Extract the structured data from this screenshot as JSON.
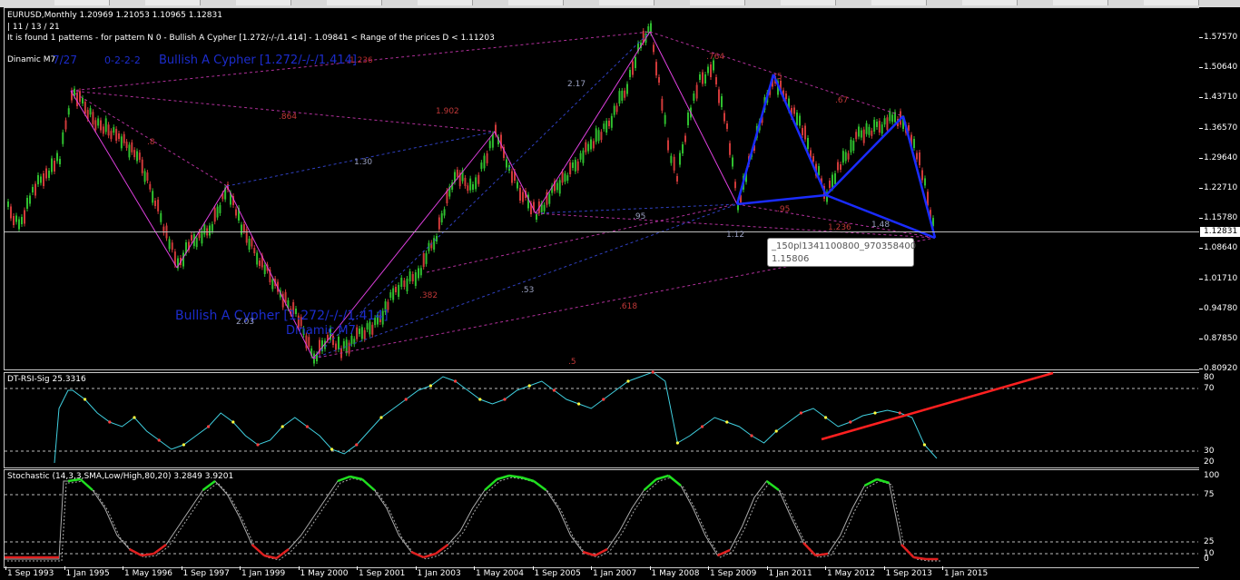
{
  "window": {
    "tabs": [
      "",
      "",
      "",
      "",
      "",
      "",
      "",
      "",
      "",
      "",
      "",
      "",
      ""
    ]
  },
  "main": {
    "header_line1": "EURUSD,Monthly  1.20969 1.21053 1.10965 1.12831",
    "header_line2": " | 11 / 13 / 21",
    "header_line3": "It is found 1 patterns  -  for pattern N 0 - Bullish A Cypher [1.272/-/-/1.414] - 1.09841 < Range of the prices D < 1.11203",
    "dinamic_label": "Dinamic  M7",
    "overlay_labels": [
      {
        "text": "7/27",
        "color": "#1c2ccc"
      },
      {
        "text": "0-2-2-2",
        "color": "#1c2ccc"
      },
      {
        "text": "Bullish A Cypher [1.272/-/-/1.414]",
        "color": "#1c2ccc"
      },
      {
        "text": "1.236",
        "color": "#b52a2a"
      }
    ],
    "pattern_title": "Bullish A Cypher [1.272/-/-/1.414]",
    "pattern_sub": "Dinamic  M7",
    "ratios": [
      ".864",
      "1.902",
      ".8",
      "2.17",
      "1.30",
      ".95",
      "1.12",
      ".764",
      ".5",
      ".67",
      ".95",
      "1.236",
      "1.48",
      ".382",
      ".53",
      ".5",
      ".618",
      "2.03"
    ],
    "price_scale": [
      "1.57570",
      "1.50640",
      "1.43710",
      "1.36570",
      "1.29640",
      "1.22710",
      "1.15780",
      "1.08640",
      "1.01710",
      "0.94780",
      "0.87850",
      "0.80920"
    ],
    "current_price": "1.12831",
    "tooltip_line1": "_150pl1341100800_970358400",
    "tooltip_line2": "1.15806"
  },
  "rsi": {
    "header": "DT-RSI-Sig 25.3316",
    "levels": [
      "80",
      "70",
      "30",
      "20"
    ]
  },
  "stochastic": {
    "header": "Stochastic (14,3,3,SMA,Low/High,80,20) 3.2849 3.9201",
    "levels": [
      "100",
      "75",
      "25",
      "10",
      "0"
    ]
  },
  "date_axis": [
    "1 Sep 1993",
    "1 Jan 1995",
    "1 May 1996",
    "1 Sep 1997",
    "1 Jan 1999",
    "1 May 2000",
    "1 Sep 2001",
    "1 Jan 2003",
    "1 May 2004",
    "1 Sep 2005",
    "1 Jan 2007",
    "1 May 2008",
    "1 Sep 2009",
    "1 Jan 2011",
    "1 May 2012",
    "1 Sep 2013",
    "1 Jan 2015"
  ],
  "colors": {
    "bull_candle": "#2fbf2f",
    "bear_candle": "#d03a3a",
    "magenta": "#e040e0",
    "blue_pattern": "#1a2cff",
    "dashed_magenta": "#b0309a",
    "dashed_blue": "#3040c0",
    "rsi_line": "#40d0e0",
    "trend_red": "#ff2020",
    "sto_green": "#20e020",
    "sto_red": "#e02020",
    "sto_grey": "#aaaaaa"
  }
}
